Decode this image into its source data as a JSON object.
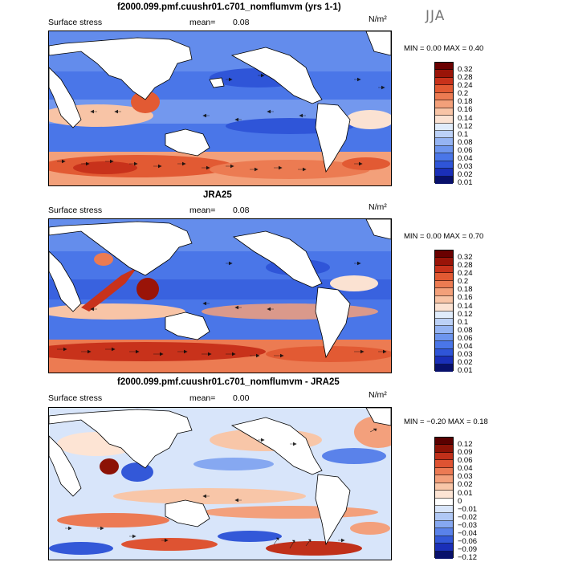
{
  "season": "JJA",
  "units": "N/m²",
  "panels": [
    {
      "title": "f2000.099.pmf.cuushr01.c701_nomflumvm (yrs 1-1)",
      "field": "Surface stress",
      "mean_label": "mean=",
      "mean_value": "0.08",
      "min_max": "MIN =    0.00 MAX =    0.40",
      "colorbar_labels": [
        "0.32",
        "0.28",
        "0.24",
        "0.2",
        "0.18",
        "0.16",
        "0.14",
        "0.12",
        "0.1",
        "0.08",
        "0.06",
        "0.04",
        "0.03",
        "0.02",
        "0.01"
      ]
    },
    {
      "title": "JRA25",
      "field": "Surface stress",
      "mean_label": "mean=",
      "mean_value": "0.08",
      "min_max": "MIN =    0.00 MAX =    0.70",
      "colorbar_labels": [
        "0.32",
        "0.28",
        "0.24",
        "0.2",
        "0.18",
        "0.16",
        "0.14",
        "0.12",
        "0.1",
        "0.08",
        "0.06",
        "0.04",
        "0.03",
        "0.02",
        "0.01"
      ]
    },
    {
      "title": "f2000.099.pmf.cuushr01.c701_nomflumvm - JRA25",
      "field": "Surface stress",
      "mean_label": "mean=",
      "mean_value": "0.00",
      "min_max": "MIN =  −0.20 MAX =    0.18",
      "colorbar_labels": [
        "0.12",
        "0.09",
        "0.06",
        "0.04",
        "0.03",
        "0.02",
        "0.01",
        "0",
        "−0.01",
        "−0.02",
        "−0.03",
        "−0.04",
        "−0.06",
        "−0.09",
        "−0.12"
      ]
    }
  ],
  "colors": {
    "seq": [
      "#08106b",
      "#1a2fb8",
      "#2f55d8",
      "#4a76e8",
      "#6d95ee",
      "#95b4f3",
      "#bcd1f7",
      "#e0ecfb",
      "#fbe2d2",
      "#f8c4a6",
      "#f3a07a",
      "#ec7b52",
      "#e25a33",
      "#c8321b",
      "#9a1408",
      "#6a0000"
    ],
    "div": [
      "#08106b",
      "#1a2fb8",
      "#3358d8",
      "#5a82ea",
      "#86a8f1",
      "#b0c8f5",
      "#d8e5fa",
      "#ffffff",
      "#fde4d4",
      "#f8c6a8",
      "#f3a07c",
      "#ec7a54",
      "#de5332",
      "#c0301a",
      "#8c1206",
      "#5a0000"
    ]
  }
}
